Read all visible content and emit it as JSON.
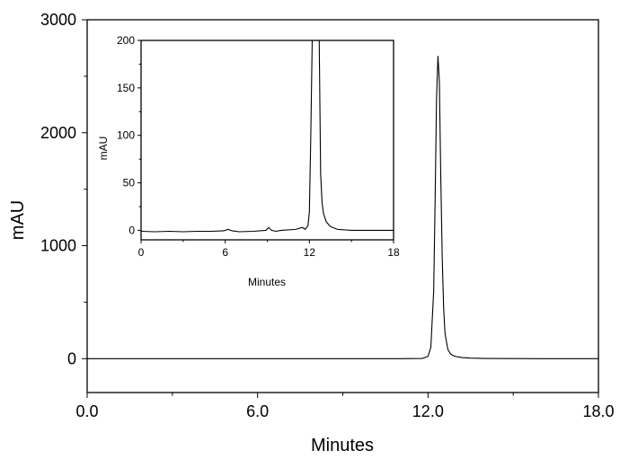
{
  "chart_data": [
    {
      "type": "line",
      "xlabel": "Minutes",
      "ylabel": "mAU",
      "xlim": [
        0,
        18
      ],
      "ylim": [
        -300,
        3000
      ],
      "xticks": [
        0,
        6,
        12,
        18
      ],
      "xtick_labels": [
        "0.0",
        "6.0",
        "12.0",
        "18.0"
      ],
      "yticks": [
        0,
        1000,
        2000,
        3000
      ],
      "ytick_labels": [
        "0",
        "1000",
        "2000",
        "3000"
      ],
      "series": [
        {
          "x": [
            0,
            2,
            4,
            6,
            8,
            10,
            11,
            11.8,
            12.0,
            12.1,
            12.2,
            12.25,
            12.3,
            12.35,
            12.4,
            12.45,
            12.5,
            12.55,
            12.6,
            12.7,
            12.8,
            12.9,
            13.0,
            13.2,
            13.5,
            14,
            16,
            18
          ],
          "y": [
            0,
            0,
            0,
            0,
            0,
            0,
            0,
            2,
            20,
            100,
            600,
            1400,
            2300,
            2680,
            2450,
            1600,
            900,
            450,
            220,
            80,
            40,
            25,
            18,
            10,
            5,
            2,
            0,
            0
          ]
        }
      ]
    },
    {
      "type": "line",
      "xlabel": "Minutes",
      "ylabel": "mAU",
      "xlim": [
        0,
        18
      ],
      "ylim": [
        -10,
        200
      ],
      "xticks": [
        0,
        6,
        12,
        18
      ],
      "xtick_labels": [
        "0",
        "6",
        "12",
        "18"
      ],
      "yticks": [
        0,
        50,
        100,
        150,
        200
      ],
      "ytick_labels": [
        "0",
        "50",
        "100",
        "150",
        "200"
      ],
      "series": [
        {
          "x": [
            0,
            1,
            2,
            3,
            4,
            5,
            5.9,
            6.2,
            6.5,
            7,
            8,
            8.9,
            9.1,
            9.3,
            9.6,
            10,
            11,
            11.5,
            11.7,
            11.9,
            12.0,
            12.1,
            12.2,
            12.3,
            12.4,
            12.5,
            12.55,
            12.6,
            12.7,
            12.8,
            12.9,
            13.0,
            13.2,
            13.5,
            14,
            15,
            16,
            17,
            18
          ],
          "y": [
            -1,
            -1.5,
            -1,
            -1.5,
            -1,
            -1,
            -0.5,
            1,
            -0.5,
            -1.5,
            -1,
            0,
            3,
            0,
            -1,
            0,
            1,
            3,
            1,
            5,
            20,
            100,
            200,
            200,
            200,
            200,
            200,
            200,
            200,
            60,
            30,
            18,
            9,
            4,
            1,
            0,
            0,
            0,
            0
          ]
        }
      ]
    }
  ]
}
